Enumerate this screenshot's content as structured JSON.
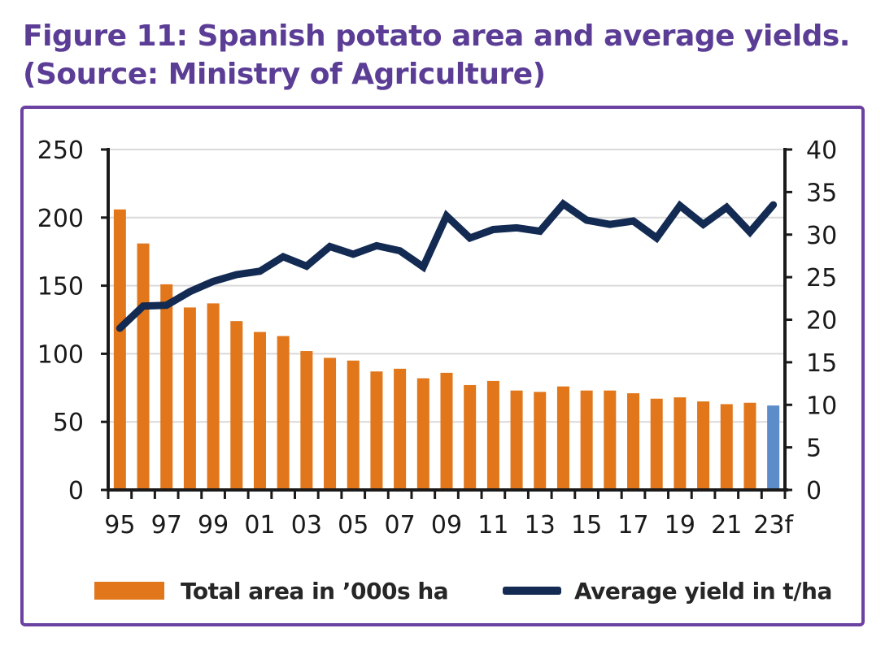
{
  "figure": {
    "title_line1": "Figure 11: Spanish potato area and average yields.",
    "title_line2": "(Source: Ministry of Agriculture)",
    "title_color": "#5B3D96",
    "frame_color": "#6B42A1"
  },
  "chart_data": {
    "type": "bar+line combo",
    "categories": [
      "95",
      "96",
      "97",
      "98",
      "99",
      "00",
      "01",
      "02",
      "03",
      "04",
      "05",
      "06",
      "07",
      "08",
      "09",
      "10",
      "11",
      "12",
      "13",
      "14",
      "15",
      "16",
      "17",
      "18",
      "19",
      "20",
      "21",
      "22",
      "23f"
    ],
    "x_tick_labels": [
      "95",
      "97",
      "99",
      "01",
      "03",
      "05",
      "07",
      "09",
      "11",
      "13",
      "15",
      "17",
      "19",
      "21",
      "23f"
    ],
    "series": [
      {
        "name": "Total area in ’000s ha",
        "type": "bar",
        "axis": "left",
        "color": "#E1761A",
        "values": [
          206,
          181,
          151,
          134,
          137,
          124,
          116,
          113,
          102,
          97,
          95,
          87,
          89,
          82,
          86,
          77,
          80,
          73,
          72,
          76,
          73,
          73,
          71,
          67,
          68,
          65,
          63,
          64,
          62
        ]
      },
      {
        "name": "Average yield in t/ha",
        "type": "line",
        "axis": "right",
        "color": "#132A52",
        "values": [
          19,
          21.6,
          21.7,
          23.3,
          24.5,
          25.3,
          25.7,
          27.4,
          26.3,
          28.6,
          27.7,
          28.7,
          28.1,
          26.2,
          32.2,
          29.6,
          30.6,
          30.8,
          30.4,
          33.6,
          31.7,
          31.2,
          31.6,
          29.6,
          33.4,
          31.2,
          33.2,
          30.3,
          33.5
        ]
      }
    ],
    "forecast_index": 28,
    "forecast_bar_color": "#5C8DC9",
    "left_axis": {
      "min": 0,
      "max": 250,
      "tick_values": [
        0,
        50,
        100,
        150,
        200,
        250
      ]
    },
    "right_axis": {
      "min": 0,
      "max": 40,
      "tick_values": [
        0,
        5,
        10,
        15,
        20,
        25,
        30,
        35,
        40
      ]
    },
    "grid": true,
    "grid_color": "#D9D9D9",
    "axis_color": "#1A1A1A",
    "legend_position": "bottom"
  }
}
